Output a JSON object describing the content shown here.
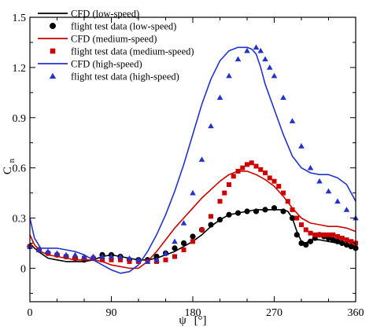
{
  "chart_data": {
    "type": "line",
    "title": "",
    "xlabel": "ψ",
    "xlabel_unit": "[°]",
    "ylabel": "C",
    "ylabel_sub": "n",
    "xlim": [
      0,
      360
    ],
    "ylim": [
      -0.2,
      1.5
    ],
    "xticks": [
      "0",
      "90",
      "180",
      "270",
      "360"
    ],
    "xtick_values": [
      0,
      90,
      180,
      270,
      360
    ],
    "yticks": [
      "0",
      "0.3",
      "0.6",
      "0.9",
      "1.2",
      "1.5"
    ],
    "ytick_values": [
      0,
      0.3,
      0.6,
      0.9,
      1.2,
      1.5
    ],
    "grid": false,
    "legend_position": "top-left",
    "series": [
      {
        "name": "CFD (low-speed)",
        "kind": "line",
        "color": "#000000",
        "x": [
          0,
          5,
          12,
          20,
          30,
          40,
          50,
          60,
          70,
          80,
          90,
          100,
          110,
          120,
          130,
          140,
          150,
          160,
          170,
          180,
          190,
          200,
          210,
          220,
          230,
          240,
          250,
          260,
          270,
          280,
          285,
          290,
          295,
          300,
          305,
          310,
          320,
          330,
          340,
          350,
          360
        ],
        "y": [
          0.15,
          0.12,
          0.09,
          0.06,
          0.05,
          0.04,
          0.04,
          0.04,
          0.05,
          0.07,
          0.08,
          0.07,
          0.06,
          0.05,
          0.05,
          0.06,
          0.08,
          0.1,
          0.13,
          0.16,
          0.2,
          0.25,
          0.29,
          0.32,
          0.33,
          0.34,
          0.35,
          0.35,
          0.35,
          0.35,
          0.34,
          0.3,
          0.22,
          0.16,
          0.15,
          0.17,
          0.17,
          0.16,
          0.15,
          0.14,
          0.13
        ]
      },
      {
        "name": "flight test data (low-speed)",
        "kind": "circle",
        "color": "#000000",
        "x": [
          0,
          10,
          20,
          30,
          40,
          50,
          60,
          70,
          80,
          90,
          100,
          110,
          120,
          130,
          140,
          150,
          160,
          170,
          180,
          190,
          200,
          210,
          220,
          230,
          240,
          250,
          260,
          270,
          280,
          290,
          295,
          300,
          305,
          310,
          315,
          320,
          325,
          330,
          335,
          340,
          345,
          350,
          355,
          360
        ],
        "y": [
          0.13,
          0.11,
          0.09,
          0.08,
          0.07,
          0.06,
          0.05,
          0.06,
          0.08,
          0.08,
          0.07,
          0.05,
          0.05,
          0.05,
          0.07,
          0.09,
          0.12,
          0.15,
          0.19,
          0.23,
          0.26,
          0.29,
          0.32,
          0.33,
          0.34,
          0.34,
          0.35,
          0.36,
          0.34,
          0.3,
          0.2,
          0.15,
          0.14,
          0.16,
          0.18,
          0.2,
          0.19,
          0.18,
          0.17,
          0.16,
          0.15,
          0.14,
          0.13,
          0.12
        ]
      },
      {
        "name": "CFD (medium-speed)",
        "kind": "line",
        "color": "#cc0000",
        "x": [
          0,
          5,
          12,
          20,
          30,
          40,
          50,
          60,
          70,
          80,
          90,
          100,
          110,
          120,
          130,
          140,
          150,
          160,
          170,
          180,
          190,
          200,
          210,
          220,
          230,
          240,
          250,
          260,
          270,
          280,
          290,
          300,
          310,
          320,
          330,
          340,
          350,
          360
        ],
        "y": [
          0.2,
          0.14,
          0.1,
          0.08,
          0.07,
          0.06,
          0.05,
          0.05,
          0.05,
          0.04,
          0.02,
          0.01,
          0.0,
          0.0,
          0.04,
          0.1,
          0.17,
          0.24,
          0.3,
          0.36,
          0.42,
          0.47,
          0.52,
          0.56,
          0.58,
          0.58,
          0.56,
          0.53,
          0.49,
          0.43,
          0.36,
          0.3,
          0.27,
          0.26,
          0.25,
          0.25,
          0.24,
          0.22
        ]
      },
      {
        "name": "flight test data (medium-speed)",
        "kind": "square",
        "color": "#cc0000",
        "x": [
          0,
          10,
          20,
          30,
          40,
          50,
          60,
          70,
          80,
          90,
          100,
          110,
          120,
          130,
          140,
          150,
          160,
          170,
          180,
          190,
          200,
          210,
          215,
          220,
          225,
          230,
          235,
          240,
          245,
          250,
          255,
          260,
          265,
          270,
          275,
          280,
          285,
          290,
          295,
          300,
          305,
          310,
          315,
          320,
          325,
          330,
          335,
          340,
          345,
          350,
          355,
          360
        ],
        "y": [
          0.13,
          0.11,
          0.09,
          0.08,
          0.07,
          0.06,
          0.06,
          0.06,
          0.05,
          0.05,
          0.05,
          0.04,
          0.04,
          0.04,
          0.04,
          0.05,
          0.07,
          0.11,
          0.16,
          0.23,
          0.31,
          0.4,
          0.45,
          0.5,
          0.55,
          0.58,
          0.6,
          0.62,
          0.63,
          0.61,
          0.59,
          0.57,
          0.54,
          0.52,
          0.49,
          0.45,
          0.4,
          0.35,
          0.3,
          0.26,
          0.23,
          0.21,
          0.2,
          0.2,
          0.2,
          0.2,
          0.2,
          0.19,
          0.18,
          0.17,
          0.16,
          0.15
        ]
      },
      {
        "name": "CFD (high-speed)",
        "kind": "line",
        "color": "#2233cc",
        "x": [
          0,
          5,
          12,
          20,
          30,
          40,
          50,
          60,
          70,
          80,
          90,
          100,
          110,
          120,
          130,
          140,
          150,
          160,
          170,
          180,
          190,
          200,
          210,
          220,
          230,
          240,
          245,
          250,
          255,
          260,
          270,
          280,
          290,
          300,
          310,
          320,
          330,
          340,
          350,
          360
        ],
        "y": [
          0.3,
          0.18,
          0.12,
          0.12,
          0.12,
          0.11,
          0.1,
          0.08,
          0.05,
          0.02,
          -0.01,
          -0.03,
          -0.02,
          0.02,
          0.1,
          0.2,
          0.32,
          0.46,
          0.62,
          0.8,
          0.98,
          1.13,
          1.24,
          1.3,
          1.32,
          1.32,
          1.31,
          1.28,
          1.2,
          1.1,
          0.95,
          0.8,
          0.67,
          0.6,
          0.57,
          0.56,
          0.56,
          0.54,
          0.5,
          0.4
        ]
      },
      {
        "name": "flight test data (high-speed)",
        "kind": "triangle",
        "color": "#2233cc",
        "x": [
          0,
          10,
          20,
          30,
          40,
          50,
          60,
          70,
          80,
          90,
          100,
          110,
          120,
          130,
          140,
          150,
          160,
          170,
          180,
          190,
          200,
          210,
          220,
          230,
          240,
          250,
          255,
          260,
          265,
          270,
          280,
          290,
          300,
          310,
          320,
          330,
          340,
          350,
          360
        ],
        "y": [
          0.13,
          0.11,
          0.1,
          0.09,
          0.08,
          0.08,
          0.07,
          0.07,
          0.07,
          0.07,
          0.07,
          0.06,
          0.05,
          0.04,
          0.05,
          0.09,
          0.16,
          0.27,
          0.45,
          0.65,
          0.85,
          1.02,
          1.15,
          1.25,
          1.3,
          1.32,
          1.3,
          1.25,
          1.2,
          1.15,
          1.02,
          0.88,
          0.73,
          0.6,
          0.52,
          0.46,
          0.4,
          0.35,
          0.3
        ]
      }
    ]
  }
}
